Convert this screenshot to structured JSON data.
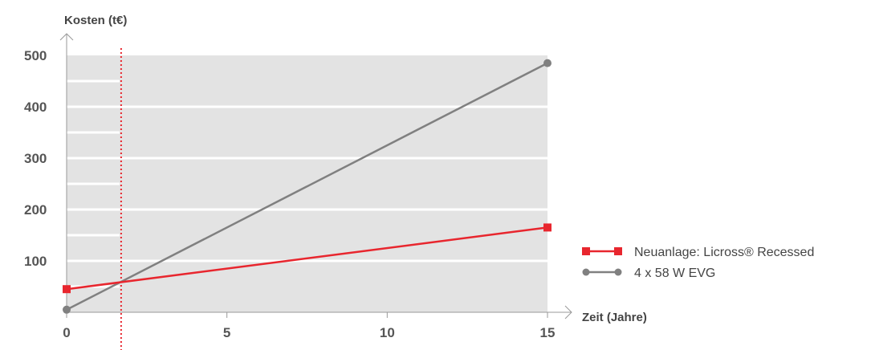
{
  "chart_data": {
    "type": "line",
    "title": "",
    "xlabel": "Zeit (Jahre)",
    "ylabel": "Kosten (t€)",
    "xlim": [
      0,
      15
    ],
    "ylim": [
      0,
      500
    ],
    "x_ticks": [
      "0",
      "5",
      "10",
      "15"
    ],
    "y_ticks": [
      "100",
      "200",
      "300",
      "400",
      "500"
    ],
    "grid": true,
    "legend_position": "right",
    "break_even_x": 1.7,
    "series": [
      {
        "name": "Neuanlage: Licross® Recessed",
        "color": "#e8262e",
        "marker": "square",
        "x": [
          0,
          15
        ],
        "y": [
          45,
          165
        ]
      },
      {
        "name": "4 x 58 W EVG",
        "color": "#808080",
        "marker": "circle",
        "x": [
          0,
          15
        ],
        "y": [
          5,
          485
        ]
      }
    ],
    "colors": {
      "plot_background": "#e3e3e3",
      "grid": "#ffffff",
      "axis": "#999999",
      "break_even_line": "#e8262e"
    }
  }
}
